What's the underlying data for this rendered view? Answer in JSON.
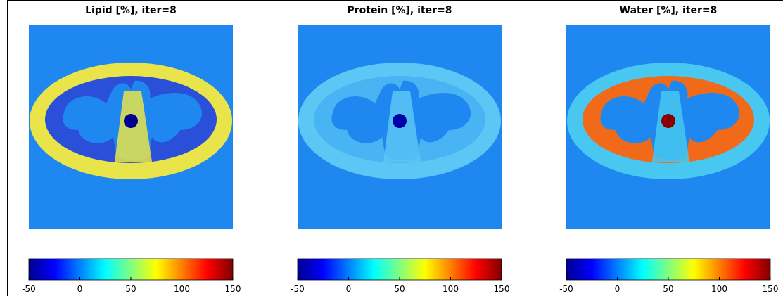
{
  "chart_data": [
    {
      "type": "image",
      "title": "Lipid [%], iter=8",
      "clim": [
        -50,
        150
      ],
      "colorbar_ticks": [
        -50,
        0,
        50,
        100,
        150
      ]
    },
    {
      "type": "image",
      "title": "Protein [%], iter=8",
      "clim": [
        -50,
        150
      ],
      "colorbar_ticks": [
        -50,
        0,
        50,
        100,
        150
      ]
    },
    {
      "type": "image",
      "title": "Water [%], iter=8",
      "clim": [
        -50,
        150
      ],
      "colorbar_ticks": [
        -50,
        0,
        50,
        100,
        150
      ]
    }
  ]
}
